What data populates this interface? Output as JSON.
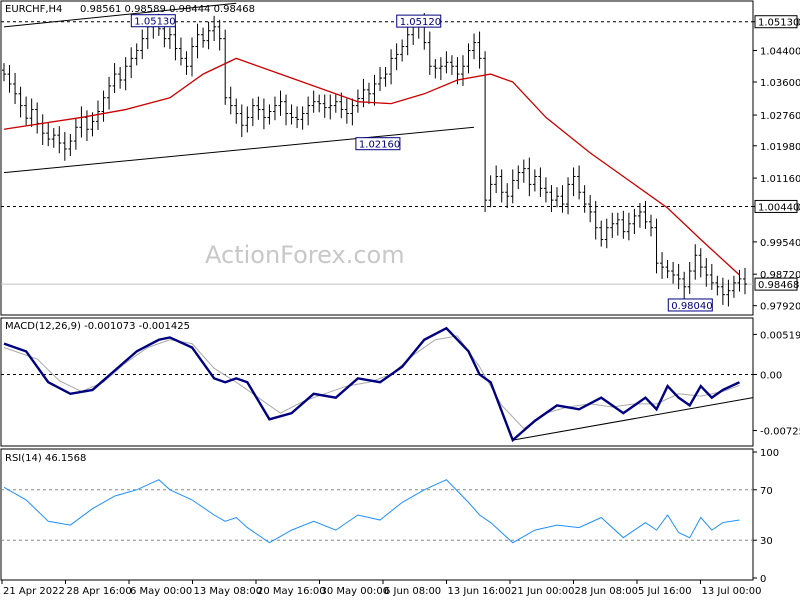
{
  "header": {
    "symbol": "EURCHF,H4",
    "ohlc": "0.98561 0.98589 0.98444 0.98468"
  },
  "watermark": "ActionForex.com",
  "chart_data": [
    {
      "type": "line",
      "id": "price",
      "series": [
        {
          "name": "",
          "kind": "ohlc-bars",
          "color": "#000000",
          "close": [
            1.038,
            1.0355,
            1.033,
            1.03,
            1.0268,
            1.029,
            1.0255,
            1.023,
            1.0215,
            1.0225,
            1.0205,
            1.019,
            1.021,
            1.0245,
            1.027,
            1.024,
            1.026,
            1.0285,
            1.032,
            1.035,
            1.038,
            1.0365,
            1.04,
            1.042,
            1.044,
            1.047,
            1.05,
            1.051,
            1.0495,
            1.047,
            1.048,
            1.0445,
            1.042,
            1.04,
            1.045,
            1.048,
            1.0465,
            1.049,
            1.05,
            1.047,
            1.032,
            1.03,
            1.028,
            1.025,
            1.027,
            1.03,
            1.029,
            1.027,
            1.0285,
            1.03,
            1.031,
            1.028,
            1.027,
            1.0265,
            1.028,
            1.03,
            1.031,
            1.0305,
            1.0295,
            1.03,
            1.031,
            1.029,
            1.028,
            1.03,
            1.0318,
            1.034,
            1.033,
            1.0355,
            1.037,
            1.038,
            1.042,
            1.043,
            1.045,
            1.048,
            1.05,
            1.0512,
            1.046,
            1.04,
            1.0395,
            1.04,
            1.041,
            1.04,
            1.038,
            1.04,
            1.044,
            1.046,
            1.042,
            1.006,
            1.01,
            1.012,
            1.008,
            1.007,
            1.011,
            1.013,
            1.014,
            1.01,
            1.012,
            1.009,
            1.008,
            1.006,
            1.007,
            1.005,
            1.01,
            1.012,
            1.008,
            1.005,
            1.003,
            0.999,
            0.996,
            0.999,
            1.0,
            1.001,
            0.998,
            1.0,
            1.002,
            1.003,
            1.0005,
            0.999,
            0.99,
            0.989,
            0.988,
            0.987,
            0.986,
            0.984,
            0.988,
            0.992,
            0.989,
            0.987,
            0.985,
            0.984,
            0.982,
            0.983,
            0.985,
            0.986,
            0.9847
          ],
          "y_approx_note": ""
        },
        {
          "name": "",
          "kind": "moving-average",
          "color": "#cc0000",
          "points": [
            [
              0,
              1.024
            ],
            [
              14,
              1.027
            ],
            [
              22,
              1.029
            ],
            [
              30,
              1.032
            ],
            [
              36,
              1.038
            ],
            [
              42,
              1.042
            ],
            [
              50,
              1.038
            ],
            [
              58,
              1.034
            ],
            [
              64,
              1.031
            ],
            [
              70,
              1.0305
            ],
            [
              76,
              1.033
            ],
            [
              82,
              1.0365
            ],
            [
              88,
              1.038
            ],
            [
              92,
              1.036
            ],
            [
              98,
              1.027
            ],
            [
              106,
              1.018
            ],
            [
              114,
              1.01
            ],
            [
              120,
              1.004
            ],
            [
              126,
              0.996
            ],
            [
              133,
              0.987
            ]
          ]
        }
      ],
      "yticks": [
        "1.05130",
        "1.04400",
        "1.03600",
        "1.02760",
        "1.01980",
        "1.01160",
        "1.00440",
        "0.99540",
        "0.98720",
        "0.97920"
      ],
      "ylim": [
        0.9776,
        1.0558
      ],
      "current_price": 0.98468,
      "current_price_label": "0.98468",
      "levels": [
        {
          "value": 1.0513,
          "label": "1.05130",
          "style": "dashed"
        },
        {
          "value": 1.0044,
          "label": "1.00440",
          "style": "dashed"
        }
      ],
      "annotations": [
        {
          "text": "1.05130",
          "value": 1.0513,
          "at_bar": 27
        },
        {
          "text": "1.05120",
          "value": 1.0512,
          "at_bar": 75
        },
        {
          "text": "1.02160",
          "value": 1.0216,
          "at_bar": 64
        },
        {
          "text": "0.98040",
          "value": 0.9804,
          "at_bar": 127
        }
      ],
      "trendlines": [
        {
          "from": [
            0,
            1.013
          ],
          "to": [
            85,
            1.0245
          ]
        },
        {
          "from": [
            0,
            1.05
          ],
          "to": [
            42,
            1.056
          ]
        }
      ]
    },
    {
      "type": "line",
      "id": "macd",
      "title": "MACD(12,26,9) -0.001073 -0.001425",
      "series": [
        {
          "name": "",
          "color": "#000080",
          "points": [
            [
              0,
              0.004
            ],
            [
              4,
              0.003
            ],
            [
              8,
              -0.001
            ],
            [
              12,
              -0.0025
            ],
            [
              16,
              -0.002
            ],
            [
              20,
              0.0005
            ],
            [
              24,
              0.003
            ],
            [
              28,
              0.0045
            ],
            [
              30,
              0.0048
            ],
            [
              34,
              0.0035
            ],
            [
              38,
              -0.0005
            ],
            [
              40,
              -0.001
            ],
            [
              42,
              -0.0005
            ],
            [
              44,
              -0.001
            ],
            [
              48,
              -0.0058
            ],
            [
              52,
              -0.005
            ],
            [
              56,
              -0.0025
            ],
            [
              60,
              -0.003
            ],
            [
              64,
              -0.0005
            ],
            [
              68,
              -0.001
            ],
            [
              72,
              0.001
            ],
            [
              76,
              0.0045
            ],
            [
              80,
              0.006
            ],
            [
              84,
              0.003
            ],
            [
              86,
              0.0
            ],
            [
              88,
              -0.001
            ],
            [
              92,
              -0.0085
            ],
            [
              96,
              -0.006
            ],
            [
              100,
              -0.004
            ],
            [
              104,
              -0.0045
            ],
            [
              108,
              -0.003
            ],
            [
              112,
              -0.005
            ],
            [
              116,
              -0.003
            ],
            [
              118,
              -0.0045
            ],
            [
              120,
              -0.0015
            ],
            [
              122,
              -0.003
            ],
            [
              124,
              -0.004
            ],
            [
              126,
              -0.0015
            ],
            [
              128,
              -0.003
            ],
            [
              130,
              -0.002
            ],
            [
              133,
              -0.001
            ]
          ]
        },
        {
          "name": "",
          "color": "#aaaaaa",
          "points": [
            [
              0,
              0.0035
            ],
            [
              6,
              0.002
            ],
            [
              10,
              -0.0008
            ],
            [
              14,
              -0.0022
            ],
            [
              18,
              -0.001
            ],
            [
              22,
              0.0015
            ],
            [
              26,
              0.0035
            ],
            [
              30,
              0.0045
            ],
            [
              34,
              0.004
            ],
            [
              38,
              0.0008
            ],
            [
              42,
              -0.001
            ],
            [
              46,
              -0.003
            ],
            [
              50,
              -0.005
            ],
            [
              54,
              -0.0035
            ],
            [
              58,
              -0.0025
            ],
            [
              62,
              -0.0015
            ],
            [
              66,
              -0.001
            ],
            [
              70,
              0.0
            ],
            [
              74,
              0.0025
            ],
            [
              78,
              0.0045
            ],
            [
              82,
              0.005
            ],
            [
              86,
              0.001
            ],
            [
              90,
              -0.004
            ],
            [
              94,
              -0.007
            ],
            [
              98,
              -0.005
            ],
            [
              102,
              -0.0042
            ],
            [
              106,
              -0.0038
            ],
            [
              110,
              -0.0042
            ],
            [
              114,
              -0.0038
            ],
            [
              118,
              -0.0038
            ],
            [
              122,
              -0.0025
            ],
            [
              126,
              -0.0028
            ],
            [
              130,
              -0.0022
            ],
            [
              133,
              -0.0014
            ]
          ]
        }
      ],
      "yticks": [
        "0.005196",
        "0.00",
        "-0.007259"
      ],
      "ylim": [
        -0.009,
        0.0068
      ],
      "trendlines": [
        {
          "from": [
            92,
            -0.0085
          ],
          "to": [
            133,
            -0.0033
          ]
        }
      ]
    },
    {
      "type": "line",
      "id": "rsi",
      "title": "RSI(14) 46.1568",
      "series": [
        {
          "name": "",
          "color": "#1e90ff",
          "points": [
            [
              0,
              72
            ],
            [
              4,
              62
            ],
            [
              8,
              45
            ],
            [
              12,
              42
            ],
            [
              16,
              55
            ],
            [
              20,
              65
            ],
            [
              24,
              70
            ],
            [
              28,
              78
            ],
            [
              30,
              70
            ],
            [
              34,
              62
            ],
            [
              38,
              50
            ],
            [
              40,
              45
            ],
            [
              42,
              48
            ],
            [
              44,
              40
            ],
            [
              48,
              28
            ],
            [
              52,
              38
            ],
            [
              56,
              45
            ],
            [
              60,
              38
            ],
            [
              64,
              50
            ],
            [
              68,
              46
            ],
            [
              72,
              60
            ],
            [
              76,
              70
            ],
            [
              80,
              78
            ],
            [
              84,
              60
            ],
            [
              86,
              50
            ],
            [
              88,
              44
            ],
            [
              92,
              28
            ],
            [
              96,
              38
            ],
            [
              100,
              42
            ],
            [
              104,
              40
            ],
            [
              108,
              48
            ],
            [
              112,
              32
            ],
            [
              116,
              44
            ],
            [
              118,
              38
            ],
            [
              120,
              50
            ],
            [
              122,
              36
            ],
            [
              124,
              32
            ],
            [
              126,
              48
            ],
            [
              128,
              38
            ],
            [
              130,
              44
            ],
            [
              133,
              46
            ]
          ]
        }
      ],
      "yticks": [
        "100",
        "70",
        "30",
        "0"
      ],
      "ylim": [
        0,
        100
      ],
      "levels": [
        {
          "value": 70,
          "style": "dashed"
        },
        {
          "value": 30,
          "style": "dashed"
        }
      ]
    }
  ],
  "x_axis": {
    "labels": [
      "21 Apr 2022",
      "28 Apr 16:00",
      "6 May 00:00",
      "13 May 08:00",
      "20 May 16:00",
      "30 May 00:00",
      "6 Jun 08:00",
      "13 Jun 16:00",
      "21 Jun 00:00",
      "28 Jun 08:00",
      "5 Jul 16:00",
      "13 Jul 00:00"
    ]
  }
}
